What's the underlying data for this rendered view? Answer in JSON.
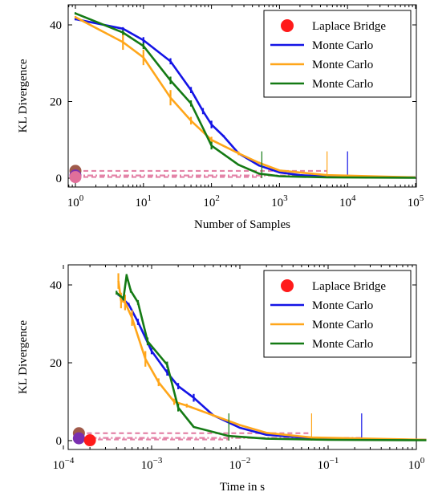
{
  "colors": {
    "laplace": "#ff1a1a",
    "mc_blue": "#1414e6",
    "mc_orange": "#ffa61a",
    "mc_green": "#147a14",
    "pink": "#e06f9a",
    "purple": "#7a2fb0",
    "brown": "#a05a4a"
  },
  "chart_data": [
    {
      "type": "line",
      "xlabel": "Number of Samples",
      "ylabel": "KL Divergence",
      "x_scale": "log",
      "xlim": [
        1,
        100000
      ],
      "ylim": [
        0,
        44
      ],
      "x_ticks": [
        1,
        10,
        100,
        1000,
        10000,
        100000
      ],
      "x_tick_labels": [
        "10^0",
        "10^1",
        "10^2",
        "10^3",
        "10^4",
        "10^5"
      ],
      "y_ticks": [
        0,
        20,
        40
      ],
      "legend_position": "top-right",
      "legend": [
        "Laplace Bridge",
        "Monte Carlo",
        "Monte Carlo",
        "Monte Carlo"
      ],
      "laplace_points": [
        {
          "x": 1,
          "y": 1.9,
          "color": "brown"
        },
        {
          "x": 1,
          "y": 0.7,
          "color": "purple"
        },
        {
          "x": 1,
          "y": 0.3,
          "color": "pink"
        }
      ],
      "dashed_levels": [
        {
          "y": 1.9,
          "x_end": 5000
        },
        {
          "y": 0.7,
          "x_end": 10000
        },
        {
          "y": 0.3,
          "x_end": 550
        }
      ],
      "series": [
        {
          "name": "Monte Carlo",
          "color": "mc_blue",
          "x": [
            1,
            5,
            10,
            25,
            50,
            75,
            100,
            150,
            250,
            500,
            1000,
            2000,
            5000,
            10000,
            100000
          ],
          "y": [
            41.5,
            39,
            36,
            30.5,
            23,
            17.5,
            14,
            11,
            6.5,
            3.3,
            1.5,
            0.8,
            0.4,
            0.3,
            0.2
          ],
          "err": [
            0.3,
            0.4,
            0.8,
            0.8,
            0.8,
            0.8,
            1,
            0.3,
            0.2,
            0.2,
            0.2,
            0.2,
            0,
            0,
            0
          ],
          "vline_x": 10000,
          "vline_y": 7
        },
        {
          "name": "Monte Carlo",
          "color": "mc_orange",
          "x": [
            1,
            5,
            10,
            25,
            50,
            100,
            250,
            500,
            1000,
            5000,
            100000
          ],
          "y": [
            42,
            35.5,
            31.5,
            21,
            15,
            10,
            6.5,
            4,
            2,
            0.8,
            0.2
          ],
          "err": [
            0.3,
            2,
            2,
            2,
            1,
            0.8,
            0.5,
            0.3,
            0.2,
            0,
            0
          ],
          "vline_x": 5000,
          "vline_y": 7
        },
        {
          "name": "Monte Carlo",
          "color": "mc_green",
          "x": [
            1,
            5,
            10,
            25,
            50,
            100,
            250,
            500,
            1000,
            5000,
            100000
          ],
          "y": [
            43,
            38,
            34.5,
            25.5,
            19.5,
            8.5,
            3.5,
            1.2,
            0.5,
            0.2,
            0.1
          ],
          "err": [
            0.3,
            0.6,
            0.8,
            1,
            0.8,
            1,
            0.2,
            0.2,
            0,
            0,
            0
          ],
          "vline_x": 550,
          "vline_y": 7
        }
      ]
    },
    {
      "type": "line",
      "xlabel": "Time in s",
      "ylabel": "KL Divergence",
      "x_scale": "log",
      "xlim": [
        0.0001,
        1.4
      ],
      "ylim": [
        0,
        44
      ],
      "x_ticks": [
        0.0001,
        0.001,
        0.01,
        0.1,
        1
      ],
      "x_tick_labels": [
        "10^-4",
        "10^-3",
        "10^-2",
        "10^-1",
        "10^0"
      ],
      "y_ticks": [
        0,
        20,
        40
      ],
      "legend_position": "top-right",
      "legend": [
        "Laplace Bridge",
        "Monte Carlo",
        "Monte Carlo",
        "Monte Carlo"
      ],
      "laplace_points": [
        {
          "x": 0.00015,
          "y": 1.9,
          "color": "brown"
        },
        {
          "x": 0.00015,
          "y": 0.6,
          "color": "purple"
        },
        {
          "x": 0.0002,
          "y": 0.1,
          "color": "laplace"
        }
      ],
      "dashed_levels": [
        {
          "y": 1.9,
          "x_end": 0.065
        },
        {
          "y": 0.7,
          "x_end": 0.24
        },
        {
          "y": 0.3,
          "x_end": 0.0075
        }
      ],
      "series": [
        {
          "name": "Monte Carlo",
          "color": "mc_blue",
          "x": [
            0.00042,
            0.00055,
            0.0007,
            0.001,
            0.0015,
            0.002,
            0.003,
            0.005,
            0.01,
            0.02,
            0.05,
            0.24,
            1.3
          ],
          "y": [
            37.5,
            35,
            30.5,
            23,
            17.5,
            14,
            11,
            6.5,
            3.3,
            1.5,
            0.8,
            0.4,
            0.2
          ],
          "err": [
            0.3,
            0.4,
            0.8,
            0.8,
            0.8,
            0.8,
            1,
            0.3,
            0.2,
            0.2,
            0,
            0,
            0
          ],
          "vline_x": 0.24,
          "vline_y": 7
        },
        {
          "name": "Monte Carlo",
          "color": "mc_orange",
          "x": [
            0.00042,
            0.00045,
            0.0005,
            0.0006,
            0.00085,
            0.0012,
            0.0018,
            0.0025,
            0.005,
            0.01,
            0.02,
            0.065,
            1.3
          ],
          "y": [
            41,
            36,
            35.5,
            31.5,
            21,
            15,
            10,
            9,
            6.5,
            4,
            2,
            0.8,
            0.2
          ],
          "err": [
            2,
            2,
            2,
            2,
            2,
            1,
            0.8,
            0.5,
            0.3,
            0.2,
            0,
            0,
            0
          ],
          "vline_x": 0.065,
          "vline_y": 7
        },
        {
          "name": "Monte Carlo",
          "color": "mc_green",
          "x": [
            0.0004,
            0.00048,
            0.00052,
            0.00058,
            0.0007,
            0.0009,
            0.0015,
            0.002,
            0.003,
            0.0075,
            0.02,
            0.1,
            1.3
          ],
          "y": [
            38,
            36.5,
            42.5,
            38.5,
            35.5,
            25.5,
            19.5,
            8.5,
            3.5,
            1.2,
            0.5,
            0.2,
            0.1
          ],
          "err": [
            0.5,
            0.5,
            0.3,
            0.5,
            0.6,
            1,
            0.8,
            1,
            0.2,
            0.2,
            0,
            0,
            0
          ],
          "vline_x": 0.0075,
          "vline_y": 7
        }
      ]
    }
  ]
}
